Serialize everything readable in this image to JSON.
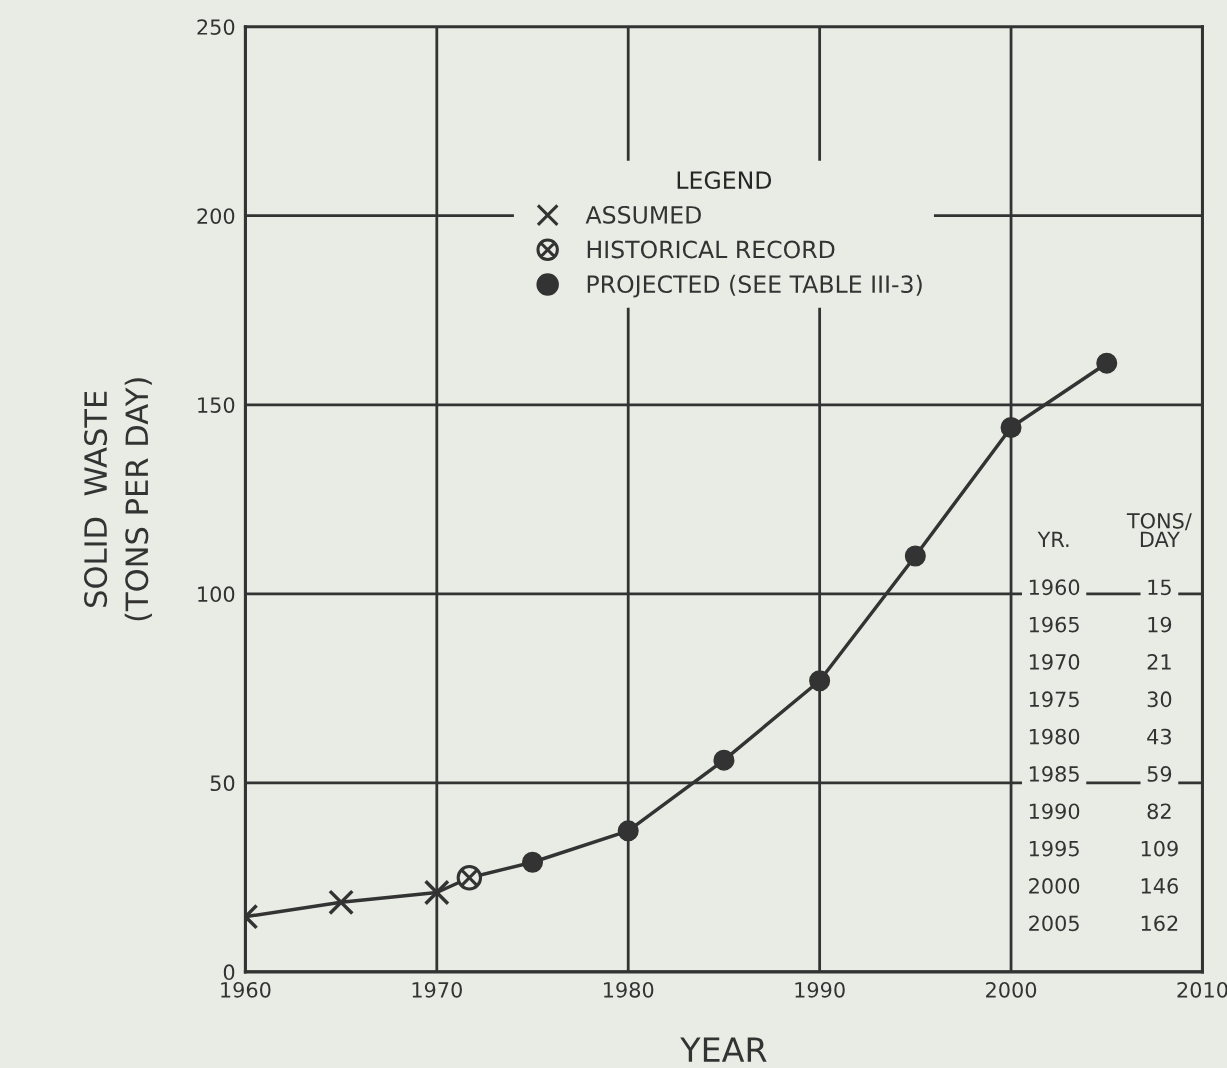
{
  "chart_data": {
    "type": "line",
    "xlabel": "YEAR",
    "ylabel": "SOLID  WASTE\n(TONS PER DAY)",
    "legend_title": "LEGEND",
    "xlim": [
      1960,
      2010
    ],
    "ylim": [
      0,
      250
    ],
    "xticks": [
      1960,
      1970,
      1980,
      1990,
      2000,
      2010
    ],
    "yticks": [
      0,
      50,
      100,
      150,
      200,
      250
    ],
    "grid": true,
    "legend": "top",
    "line_style": "solid",
    "series": [
      {
        "color": "#333333",
        "marker": "none",
        "x": [
          1960,
          1965,
          1970,
          1971.7,
          1975,
          1980,
          1985,
          1990,
          1995,
          2000,
          2005
        ],
        "values": [
          14.6,
          18.4,
          21,
          24.9,
          29,
          37.3,
          56,
          77,
          110,
          144,
          161
        ]
      },
      {
        "type": "scatter",
        "name": "ASSUMED",
        "color": "#333333",
        "marker": "cross",
        "x": [
          1960,
          1965,
          1970
        ],
        "values": [
          14.6,
          18.4,
          21
        ]
      },
      {
        "type": "scatter",
        "name": "HISTORICAL RECORD",
        "color": "#333333",
        "marker": "circled cross",
        "x": [
          1971.7
        ],
        "values": [
          24.9
        ]
      },
      {
        "type": "scatter",
        "name": "PROJECTED (SEE TABLE III-3)",
        "color": "#333333",
        "marker": "circle",
        "x": [
          1975,
          1980,
          1985,
          1990,
          1995,
          2000,
          2005
        ],
        "values": [
          29,
          37.3,
          56,
          77,
          110,
          144,
          161
        ]
      }
    ],
    "annotations": [
      "YR.",
      "TONS/\nDAY",
      "1960",
      "15",
      "1965",
      "19",
      "1970",
      "21",
      "1975",
      "30",
      "1980",
      "43",
      "1985",
      "59",
      "1990",
      "82",
      "1995",
      "109",
      "2000",
      "146",
      "2005",
      "162"
    ]
  }
}
